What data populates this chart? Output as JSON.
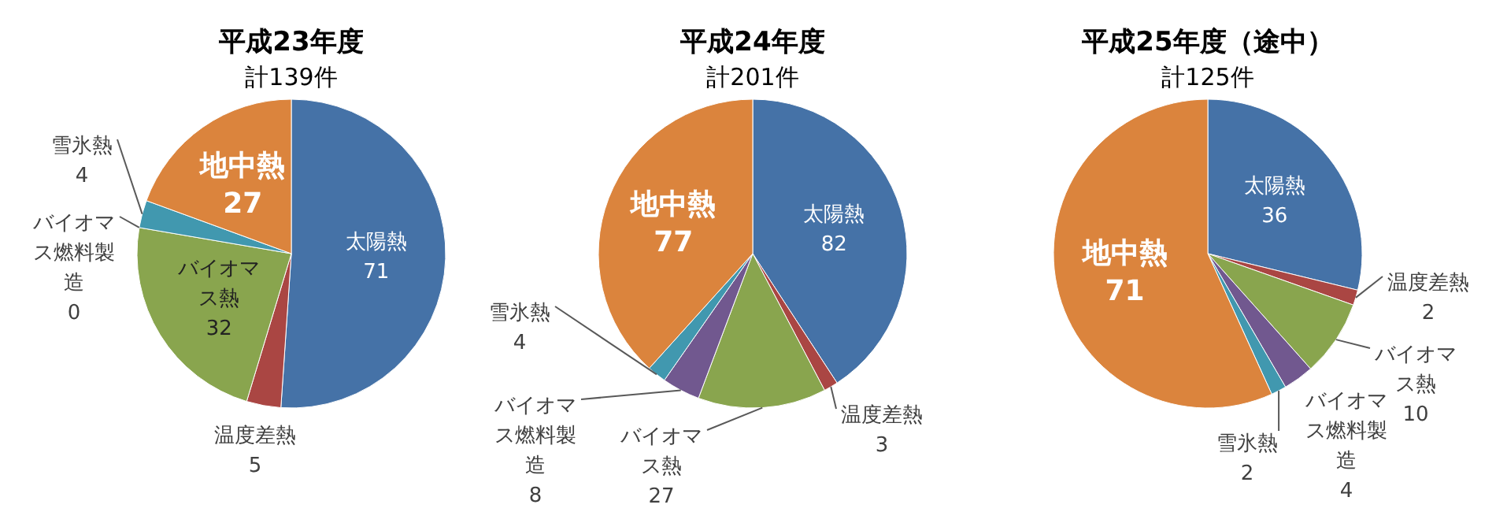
{
  "chart_data": [
    {
      "type": "pie",
      "title": "平成23年度",
      "subtitle": "計139件",
      "categories": [
        "太陽熱",
        "温度差熱",
        "バイオマス熱",
        "バイオマス燃料製造",
        "雪氷熱",
        "地中熱"
      ],
      "values": [
        71,
        5,
        32,
        0,
        4,
        27
      ],
      "value_labels": [
        "71",
        "5",
        "32",
        "0",
        "4",
        "27"
      ],
      "colors": [
        "#4572a7",
        "#aa4643",
        "#89a54e",
        "#71588f",
        "#4198af",
        "#db843d"
      ]
    },
    {
      "type": "pie",
      "title": "平成24年度",
      "subtitle": "計201件",
      "categories": [
        "太陽熱",
        "温度差熱",
        "バイオマス熱",
        "バイオマス燃料製造",
        "雪氷熱",
        "地中熱"
      ],
      "values": [
        82,
        3,
        27,
        8,
        4,
        77
      ],
      "value_labels": [
        "82",
        "3",
        "27",
        "8",
        "4",
        "77"
      ],
      "colors": [
        "#4572a7",
        "#aa4643",
        "#89a54e",
        "#71588f",
        "#4198af",
        "#db843d"
      ]
    },
    {
      "type": "pie",
      "title": "平成25年度（途中）",
      "subtitle": "計125件",
      "categories": [
        "太陽熱",
        "温度差熱",
        "バイオマス熱",
        "バイオマス燃料製造",
        "雪氷熱",
        "地中熱"
      ],
      "values": [
        36,
        2,
        10,
        4,
        2,
        71
      ],
      "value_labels": [
        "36",
        "2",
        "10",
        "4",
        "2",
        "71"
      ],
      "colors": [
        "#4572a7",
        "#aa4643",
        "#89a54e",
        "#71588f",
        "#4198af",
        "#db843d"
      ]
    }
  ]
}
